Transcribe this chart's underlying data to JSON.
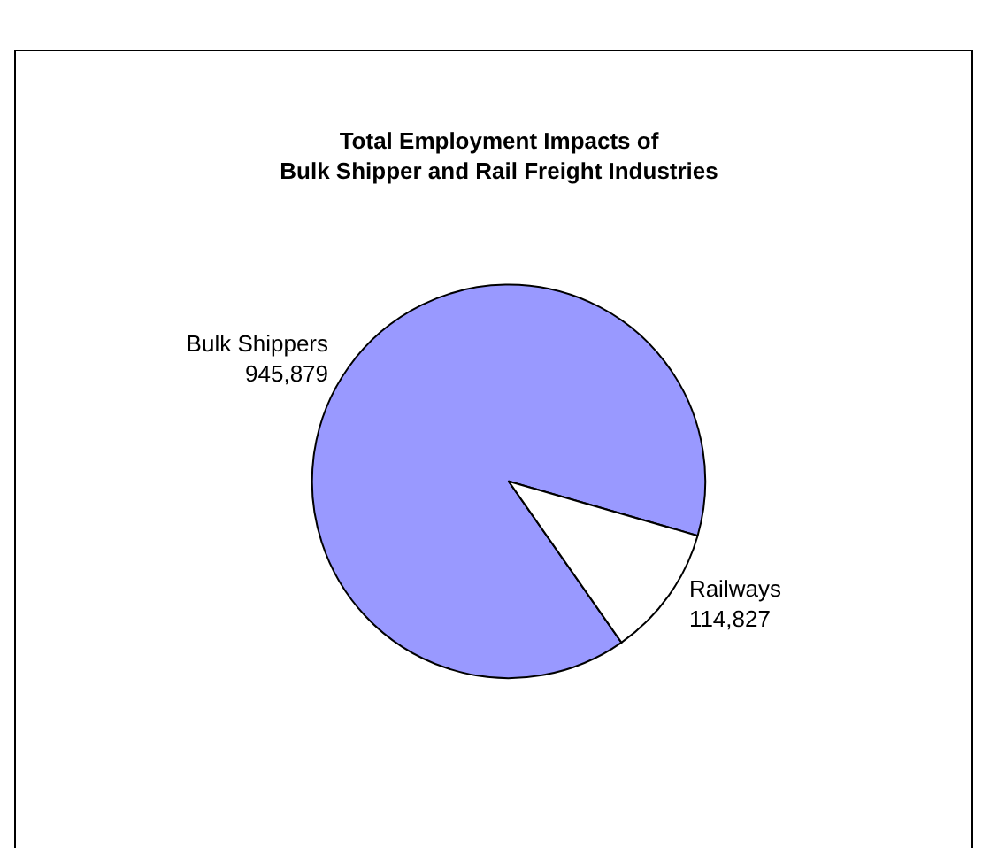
{
  "chart_data": {
    "type": "pie",
    "title": "Total Employment Impacts of\nBulk Shipper and Rail Freight Industries",
    "categories": [
      "Bulk Shippers",
      "Railways"
    ],
    "values": [
      945879,
      114827
    ],
    "value_labels": [
      "945,879",
      "114,827"
    ],
    "colors": [
      "#9999ff",
      "#ffffff"
    ]
  }
}
